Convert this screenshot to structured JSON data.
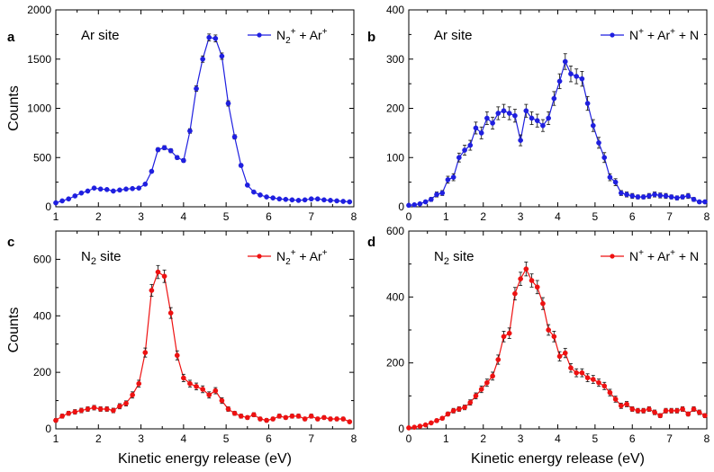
{
  "figure": {
    "xlabel_bottom": "Kinetic energy release (eV)",
    "ylabel_left": "Counts"
  },
  "chart_data": [
    {
      "panel": "a",
      "type": "line",
      "annotation": "Ar site",
      "annotation_sub": "",
      "annotation_tail": "",
      "legend": {
        "text": "N2+ + Ar+",
        "position": "top-right"
      },
      "legend_parts": [
        {
          "t": "N",
          "k": "n"
        },
        {
          "t": "2",
          "k": "sub"
        },
        {
          "t": "+",
          "k": "sup"
        },
        {
          "t": " + Ar",
          "k": "n"
        },
        {
          "t": "+",
          "k": "sup"
        }
      ],
      "color": "#1f1fe0",
      "xlim": [
        1,
        8
      ],
      "ylim": [
        0,
        2000
      ],
      "xticks": [
        1,
        2,
        3,
        4,
        5,
        6,
        7,
        8
      ],
      "yticks": [
        0,
        500,
        1000,
        1500,
        2000
      ],
      "ylabel": "Counts",
      "xlabel": "",
      "x": [
        1.0,
        1.15,
        1.3,
        1.45,
        1.6,
        1.75,
        1.9,
        2.05,
        2.2,
        2.35,
        2.5,
        2.65,
        2.8,
        2.95,
        3.1,
        3.25,
        3.4,
        3.55,
        3.7,
        3.85,
        4.0,
        4.15,
        4.3,
        4.45,
        4.6,
        4.75,
        4.9,
        5.05,
        5.2,
        5.35,
        5.5,
        5.65,
        5.8,
        5.95,
        6.1,
        6.25,
        6.4,
        6.55,
        6.7,
        6.85,
        7.0,
        7.15,
        7.3,
        7.45,
        7.6,
        7.75,
        7.9
      ],
      "y": [
        40,
        60,
        80,
        110,
        140,
        160,
        190,
        180,
        175,
        160,
        170,
        180,
        185,
        190,
        230,
        360,
        580,
        600,
        570,
        500,
        470,
        770,
        1200,
        1500,
        1720,
        1710,
        1530,
        1050,
        710,
        420,
        220,
        150,
        120,
        100,
        90,
        80,
        75,
        70,
        65,
        70,
        80,
        80,
        70,
        65,
        60,
        55,
        50
      ],
      "err": [
        6,
        7,
        8,
        9,
        10,
        10,
        11,
        11,
        11,
        10,
        11,
        11,
        11,
        11,
        12,
        15,
        20,
        21,
        20,
        18,
        18,
        23,
        28,
        32,
        35,
        35,
        32,
        27,
        22,
        17,
        12,
        10,
        9,
        8,
        8,
        7,
        7,
        7,
        7,
        7,
        7,
        7,
        7,
        6,
        6,
        6,
        6
      ]
    },
    {
      "panel": "b",
      "type": "line",
      "annotation": "Ar site",
      "annotation_sub": "",
      "annotation_tail": "",
      "legend": {
        "text": "N+ + Ar+ + N",
        "position": "top-right"
      },
      "legend_parts": [
        {
          "t": "N",
          "k": "n"
        },
        {
          "t": "+",
          "k": "sup"
        },
        {
          "t": " + Ar",
          "k": "n"
        },
        {
          "t": "+",
          "k": "sup"
        },
        {
          "t": " + N",
          "k": "n"
        }
      ],
      "color": "#1f1fe0",
      "xlim": [
        0,
        8
      ],
      "ylim": [
        0,
        400
      ],
      "xticks": [
        0,
        1,
        2,
        3,
        4,
        5,
        6,
        7,
        8
      ],
      "yticks": [
        0,
        100,
        200,
        300,
        400
      ],
      "ylabel": "",
      "xlabel": "",
      "x": [
        0.0,
        0.15,
        0.3,
        0.45,
        0.6,
        0.75,
        0.9,
        1.05,
        1.2,
        1.35,
        1.5,
        1.65,
        1.8,
        1.95,
        2.1,
        2.25,
        2.4,
        2.55,
        2.7,
        2.85,
        3.0,
        3.15,
        3.3,
        3.45,
        3.6,
        3.75,
        3.9,
        4.05,
        4.2,
        4.35,
        4.5,
        4.65,
        4.8,
        4.95,
        5.1,
        5.25,
        5.4,
        5.55,
        5.7,
        5.85,
        6.0,
        6.15,
        6.3,
        6.45,
        6.6,
        6.75,
        6.9,
        7.05,
        7.2,
        7.35,
        7.5,
        7.65,
        7.8,
        7.95
      ],
      "y": [
        3,
        4,
        6,
        10,
        15,
        25,
        28,
        55,
        60,
        100,
        115,
        125,
        160,
        150,
        180,
        170,
        190,
        195,
        190,
        185,
        135,
        195,
        180,
        175,
        165,
        180,
        220,
        255,
        295,
        270,
        265,
        260,
        210,
        165,
        130,
        100,
        60,
        50,
        28,
        25,
        22,
        20,
        20,
        22,
        25,
        23,
        22,
        20,
        18,
        20,
        22,
        15,
        10,
        10
      ],
      "err": [
        2,
        2,
        2,
        3,
        4,
        5,
        5,
        7,
        7,
        9,
        10,
        10,
        12,
        12,
        13,
        12,
        13,
        13,
        13,
        13,
        11,
        13,
        13,
        13,
        12,
        13,
        14,
        15,
        16,
        16,
        15,
        15,
        14,
        12,
        11,
        10,
        7,
        7,
        5,
        5,
        5,
        4,
        4,
        5,
        5,
        5,
        5,
        4,
        4,
        4,
        5,
        4,
        3,
        3
      ]
    },
    {
      "panel": "c",
      "type": "line",
      "annotation": "N",
      "annotation_sub": "2",
      "annotation_tail": " site",
      "legend": {
        "text": "N2+ + Ar+",
        "position": "top-right"
      },
      "legend_parts": [
        {
          "t": "N",
          "k": "n"
        },
        {
          "t": "2",
          "k": "sub"
        },
        {
          "t": "+",
          "k": "sup"
        },
        {
          "t": " + Ar",
          "k": "n"
        },
        {
          "t": "+",
          "k": "sup"
        }
      ],
      "color": "#ee1111",
      "xlim": [
        1,
        8
      ],
      "ylim": [
        0,
        700
      ],
      "xticks": [
        1,
        2,
        3,
        4,
        5,
        6,
        7,
        8
      ],
      "yticks": [
        0,
        200,
        400,
        600
      ],
      "ylabel": "Counts",
      "xlabel": "Kinetic energy release (eV)",
      "x": [
        1.0,
        1.15,
        1.3,
        1.45,
        1.6,
        1.75,
        1.9,
        2.05,
        2.2,
        2.35,
        2.5,
        2.65,
        2.8,
        2.95,
        3.1,
        3.25,
        3.4,
        3.55,
        3.7,
        3.85,
        4.0,
        4.15,
        4.3,
        4.45,
        4.6,
        4.75,
        4.9,
        5.05,
        5.2,
        5.35,
        5.5,
        5.65,
        5.8,
        5.95,
        6.1,
        6.25,
        6.4,
        6.55,
        6.7,
        6.85,
        7.0,
        7.15,
        7.3,
        7.45,
        7.6,
        7.75,
        7.9
      ],
      "y": [
        30,
        45,
        55,
        60,
        65,
        70,
        75,
        70,
        70,
        65,
        80,
        90,
        120,
        160,
        270,
        490,
        555,
        540,
        410,
        260,
        180,
        160,
        150,
        140,
        120,
        135,
        100,
        70,
        55,
        45,
        40,
        50,
        35,
        30,
        35,
        45,
        40,
        45,
        45,
        35,
        45,
        35,
        40,
        35,
        35,
        35,
        25
      ],
      "err": [
        6,
        7,
        7,
        8,
        8,
        8,
        8,
        8,
        8,
        8,
        9,
        9,
        11,
        12,
        16,
        21,
        23,
        22,
        19,
        16,
        13,
        12,
        12,
        12,
        11,
        11,
        10,
        8,
        7,
        7,
        6,
        7,
        6,
        6,
        6,
        7,
        6,
        7,
        7,
        6,
        7,
        6,
        6,
        6,
        6,
        6,
        5
      ]
    },
    {
      "panel": "d",
      "type": "line",
      "annotation": "N",
      "annotation_sub": "2",
      "annotation_tail": " site",
      "legend": {
        "text": "N+ + Ar+ + N",
        "position": "top-right"
      },
      "legend_parts": [
        {
          "t": "N",
          "k": "n"
        },
        {
          "t": "+",
          "k": "sup"
        },
        {
          "t": " + Ar",
          "k": "n"
        },
        {
          "t": "+",
          "k": "sup"
        },
        {
          "t": " + N",
          "k": "n"
        }
      ],
      "color": "#ee1111",
      "xlim": [
        0,
        8
      ],
      "ylim": [
        0,
        600
      ],
      "xticks": [
        0,
        1,
        2,
        3,
        4,
        5,
        6,
        7,
        8
      ],
      "yticks": [
        0,
        200,
        400,
        600
      ],
      "ylabel": "",
      "xlabel": "Kinetic energy release (eV)",
      "x": [
        0.0,
        0.15,
        0.3,
        0.45,
        0.6,
        0.75,
        0.9,
        1.05,
        1.2,
        1.35,
        1.5,
        1.65,
        1.8,
        1.95,
        2.1,
        2.25,
        2.4,
        2.55,
        2.7,
        2.85,
        3.0,
        3.15,
        3.3,
        3.45,
        3.6,
        3.75,
        3.9,
        4.05,
        4.2,
        4.35,
        4.5,
        4.65,
        4.8,
        4.95,
        5.1,
        5.25,
        5.4,
        5.55,
        5.7,
        5.85,
        6.0,
        6.15,
        6.3,
        6.45,
        6.6,
        6.75,
        6.9,
        7.05,
        7.2,
        7.35,
        7.5,
        7.65,
        7.8,
        7.95
      ],
      "y": [
        3,
        5,
        8,
        12,
        18,
        25,
        32,
        45,
        55,
        60,
        65,
        80,
        100,
        120,
        140,
        160,
        210,
        280,
        290,
        410,
        455,
        485,
        450,
        430,
        380,
        300,
        280,
        220,
        230,
        185,
        170,
        170,
        155,
        150,
        140,
        130,
        110,
        90,
        70,
        75,
        60,
        55,
        55,
        60,
        50,
        40,
        55,
        55,
        55,
        60,
        45,
        60,
        50,
        40
      ],
      "err": [
        2,
        2,
        3,
        3,
        4,
        5,
        5,
        6,
        7,
        7,
        7,
        8,
        9,
        10,
        11,
        12,
        14,
        16,
        16,
        19,
        20,
        21,
        20,
        20,
        18,
        16,
        16,
        14,
        14,
        13,
        12,
        12,
        12,
        12,
        11,
        11,
        10,
        9,
        8,
        8,
        7,
        7,
        7,
        7,
        7,
        6,
        7,
        7,
        7,
        7,
        6,
        7,
        7,
        6
      ]
    }
  ]
}
